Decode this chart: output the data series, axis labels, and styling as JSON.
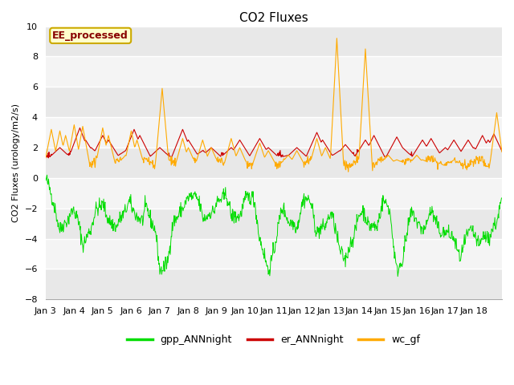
{
  "title": "CO2 Fluxes",
  "ylabel": "CO2 Fluxes (urology/m2/s)",
  "ylim": [
    -8,
    10
  ],
  "yticks": [
    -8,
    -6,
    -4,
    -2,
    0,
    2,
    4,
    6,
    8,
    10
  ],
  "bg_white": "#ffffff",
  "bg_gray": "#e8e8e8",
  "grid_color": "#cccccc",
  "annotation_text": "EE_processed",
  "annotation_bg": "#ffffcc",
  "annotation_border": "#ccaa00",
  "annotation_text_color": "#880000",
  "legend_labels": [
    "gpp_ANNnight",
    "er_ANNnight",
    "wc_gf"
  ],
  "line_colors": [
    "#00dd00",
    "#cc0000",
    "#ffaa00"
  ],
  "n_points": 960,
  "x_tick_labels": [
    "Jan 3",
    "Jan 4",
    "Jan 5",
    "Jan 6",
    "Jan 7",
    "Jan 8",
    "Jan 9",
    "Jan 10",
    "Jan 11",
    "Jan 12",
    "Jan 13",
    "Jan 14",
    "Jan 15",
    "Jan 16",
    "Jan 17",
    "Jan 18"
  ],
  "title_fontsize": 11,
  "label_fontsize": 8,
  "tick_fontsize": 8,
  "legend_fontsize": 9,
  "figsize": [
    6.4,
    4.8
  ],
  "dpi": 100
}
